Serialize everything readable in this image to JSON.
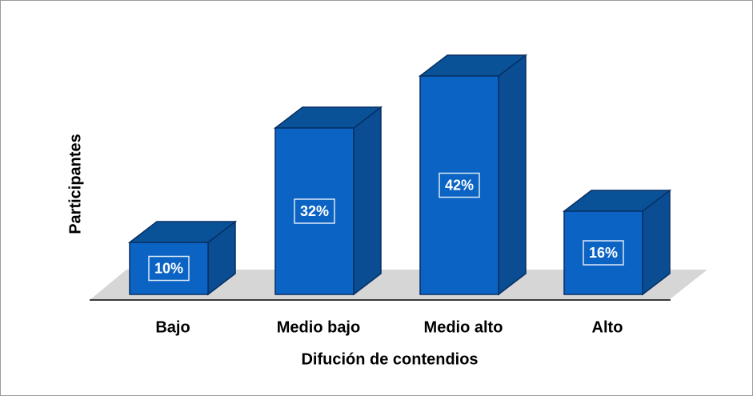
{
  "chart_data": {
    "type": "bar3d",
    "categories": [
      "Bajo",
      "Medio bajo",
      "Medio alto",
      "Alto"
    ],
    "values": [
      10,
      32,
      42,
      16
    ],
    "value_labels": [
      "10%",
      "32%",
      "42%",
      "16%"
    ],
    "color": "#0b64c4",
    "xlabel": "Difución de contendios",
    "ylabel": "Participantes"
  }
}
